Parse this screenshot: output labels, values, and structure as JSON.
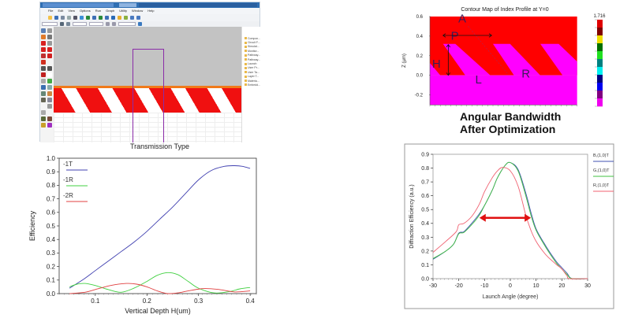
{
  "layout_window": {
    "menu": [
      "File",
      "Edit",
      "View",
      "Options",
      "Run",
      "Graph",
      "Utility",
      "Window",
      "Help"
    ],
    "tree_items": [
      "Compon...",
      "Circuit F...",
      "Simulat...",
      "Monitor...",
      "Pathway...",
      "Pathway...",
      "Launch",
      "User Pr...",
      "User Ta...",
      "Layer T...",
      "Materia...",
      "Embedd..."
    ],
    "toolbar_icon_colors": [
      "#f4c24a",
      "#3d6fb6",
      "#7a8aa0",
      "#9aa",
      "#556",
      "#3d8fd6",
      "#2a8a3a",
      "#3d6fb6",
      "#2a8a3a",
      "#3d6fb6",
      "#2a6ab6",
      "#e8b030",
      "#8ab040",
      "#4a7ac0",
      "#4a7ac0"
    ],
    "tool_icons": [
      {
        "name": "select-icon",
        "color": "#5b7fb5"
      },
      {
        "name": "zoom-icon",
        "color": "#999"
      },
      {
        "name": "scissors-icon",
        "color": "#e07a2a"
      },
      {
        "name": "arc-icon",
        "color": "#777"
      },
      {
        "name": "line-waveguide-icon",
        "color": "#d82020"
      },
      {
        "name": "tapered-icon",
        "color": "#999"
      },
      {
        "name": "bend-icon",
        "color": "#d82020"
      },
      {
        "name": "s-bend-icon",
        "color": "#d82020"
      },
      {
        "name": "ellipse-icon",
        "color": "#c03030"
      },
      {
        "name": "sphere-icon",
        "color": "#d02020"
      },
      {
        "name": "shape-icon",
        "color": "#d03020"
      },
      {
        "name": "blank",
        "color": "#f4f4f4"
      },
      {
        "name": "block-icon",
        "color": "#555"
      },
      {
        "name": "block-dark-icon",
        "color": "#555"
      },
      {
        "name": "polygon-icon",
        "color": "#c02020"
      },
      {
        "name": "rectangle-icon",
        "color": "#fff"
      },
      {
        "name": "lens-icon",
        "color": "#aaa"
      },
      {
        "name": "grating-icon",
        "color": "#4a4"
      },
      {
        "name": "globe-icon",
        "color": "#3a6fb0"
      },
      {
        "name": "layer-icon",
        "color": "#8aa"
      },
      {
        "name": "grid-icon",
        "color": "#687"
      },
      {
        "name": "image-icon",
        "color": "#c84"
      },
      {
        "name": "path-icon",
        "color": "#665"
      },
      {
        "name": "fork-icon",
        "color": "#889"
      },
      {
        "name": "blank",
        "color": "#f4f4f4"
      },
      {
        "name": "person-icon",
        "color": "#999"
      },
      {
        "name": "cross-icon",
        "color": "#aaa"
      },
      {
        "name": "blank",
        "color": "#f4f4f4"
      },
      {
        "name": "device-icon",
        "color": "#5a6a3a"
      },
      {
        "name": "material-icon",
        "color": "#7a4a3a"
      },
      {
        "name": "star-icon",
        "color": "#c9a02a"
      },
      {
        "name": "purple-square-icon",
        "color": "#a030c0"
      }
    ],
    "caption": "Transmission Type"
  },
  "caption_right": [
    "Angular Bandwidth",
    "After Optimization"
  ],
  "chart_data": [
    {
      "type": "line",
      "xlabel": "Vertical Depth H(um)",
      "ylabel": "Efficiency",
      "xlim": [
        0.03,
        0.412
      ],
      "ylim": [
        0,
        1.0
      ],
      "xticks": [
        0.1,
        0.2,
        0.3,
        0.4
      ],
      "yticks": [
        0.0,
        0.1,
        0.2,
        0.3,
        0.4,
        0.5,
        0.6,
        0.7,
        0.8,
        0.9,
        1.0
      ],
      "legend_position": "top-left",
      "series": [
        {
          "name": "-1T",
          "color": "#4040b0",
          "x": [
            0.05,
            0.075,
            0.1,
            0.125,
            0.15,
            0.175,
            0.2,
            0.225,
            0.25,
            0.275,
            0.3,
            0.325,
            0.35,
            0.37,
            0.385,
            0.4
          ],
          "y": [
            0.04,
            0.1,
            0.17,
            0.24,
            0.31,
            0.38,
            0.46,
            0.55,
            0.64,
            0.74,
            0.84,
            0.91,
            0.94,
            0.945,
            0.94,
            0.925
          ]
        },
        {
          "name": "-1R",
          "color": "#40d040",
          "x": [
            0.05,
            0.065,
            0.08,
            0.1,
            0.125,
            0.15,
            0.175,
            0.2,
            0.22,
            0.24,
            0.26,
            0.28,
            0.3,
            0.33,
            0.36,
            0.38,
            0.4
          ],
          "y": [
            0.05,
            0.07,
            0.075,
            0.06,
            0.03,
            0.01,
            0.04,
            0.09,
            0.135,
            0.155,
            0.14,
            0.09,
            0.04,
            0.005,
            0.015,
            0.035,
            0.045
          ]
        },
        {
          "name": "-2R",
          "color": "#e04040",
          "x": [
            0.05,
            0.08,
            0.1,
            0.13,
            0.16,
            0.18,
            0.2,
            0.22,
            0.24,
            0.26,
            0.28,
            0.31,
            0.34,
            0.37,
            0.4
          ],
          "y": [
            0.0,
            0.01,
            0.03,
            0.06,
            0.075,
            0.07,
            0.05,
            0.02,
            0.0,
            0.005,
            0.02,
            0.037,
            0.03,
            0.012,
            0.02
          ]
        }
      ]
    },
    {
      "type": "line",
      "xlabel": "Launch Angle (degree)",
      "ylabel": "Diffraction Efficiency (a.u.)",
      "xlim": [
        -30,
        30
      ],
      "ylim": [
        0,
        0.9
      ],
      "xticks": [
        -30,
        -20,
        -10,
        0,
        10,
        20,
        30
      ],
      "yticks": [
        0.0,
        0.1,
        0.2,
        0.3,
        0.4,
        0.5,
        0.6,
        0.7,
        0.8,
        0.9
      ],
      "legend_position": "right",
      "annotation": {
        "type": "double-arrow",
        "color": "#e01010",
        "x_from": -12,
        "x_to": 8,
        "y": 0.44
      },
      "series": [
        {
          "name": "B,(1,0)T",
          "color": "#4050b0",
          "x": [
            -30,
            -25,
            -22,
            -20,
            -18,
            -15,
            -12,
            -10,
            -7,
            -5,
            -2,
            0,
            3,
            6,
            8,
            10,
            13,
            15,
            18,
            20,
            22,
            24,
            30
          ],
          "y": [
            0.14,
            0.2,
            0.25,
            0.33,
            0.34,
            0.4,
            0.47,
            0.53,
            0.64,
            0.73,
            0.82,
            0.84,
            0.79,
            0.62,
            0.48,
            0.36,
            0.26,
            0.2,
            0.12,
            0.08,
            0.04,
            0.0,
            0.0
          ]
        },
        {
          "name": "G,(1,0)T",
          "color": "#40c040",
          "x": [
            -30,
            -25,
            -22,
            -20,
            -18,
            -15,
            -12,
            -10,
            -7,
            -5,
            -2,
            0,
            3,
            6,
            8,
            10,
            13,
            15,
            18,
            20,
            22,
            24,
            30
          ],
          "y": [
            0.145,
            0.2,
            0.25,
            0.325,
            0.335,
            0.39,
            0.46,
            0.53,
            0.64,
            0.73,
            0.82,
            0.84,
            0.78,
            0.6,
            0.46,
            0.35,
            0.25,
            0.19,
            0.11,
            0.07,
            0.03,
            0.0,
            0.0
          ]
        },
        {
          "name": "R,(1,0)T",
          "color": "#f06070",
          "x": [
            -30,
            -25,
            -21,
            -20,
            -18,
            -15,
            -12,
            -10,
            -7,
            -5,
            -3,
            0,
            3,
            6,
            8,
            10,
            13,
            15,
            18,
            20,
            22,
            23,
            30
          ],
          "y": [
            0.19,
            0.27,
            0.34,
            0.39,
            0.4,
            0.45,
            0.54,
            0.63,
            0.73,
            0.78,
            0.805,
            0.78,
            0.67,
            0.46,
            0.35,
            0.27,
            0.19,
            0.15,
            0.1,
            0.07,
            0.02,
            0.0,
            0.0
          ]
        }
      ]
    },
    {
      "type": "heatmap",
      "title": "Contour Map of Index Profile at Y=0",
      "ylabel": "Z (µm)",
      "ylim": [
        -0.3,
        0.6
      ],
      "yticks": [
        0.6,
        0.4,
        0.2,
        0.0,
        -0.2
      ],
      "colorbar_max_label": "1.716",
      "colorbar_colors": [
        "#e00000",
        "#800000",
        "#f0e000",
        "#007000",
        "#20e020",
        "#008080",
        "#00f0f0",
        "#000080",
        "#0000f0",
        "#800080",
        "#f000f0"
      ],
      "region_colors": {
        "high": "#ff0000",
        "low": "#ff00ff"
      },
      "annotations": [
        "A",
        "P",
        "H",
        "L",
        "R"
      ]
    }
  ]
}
